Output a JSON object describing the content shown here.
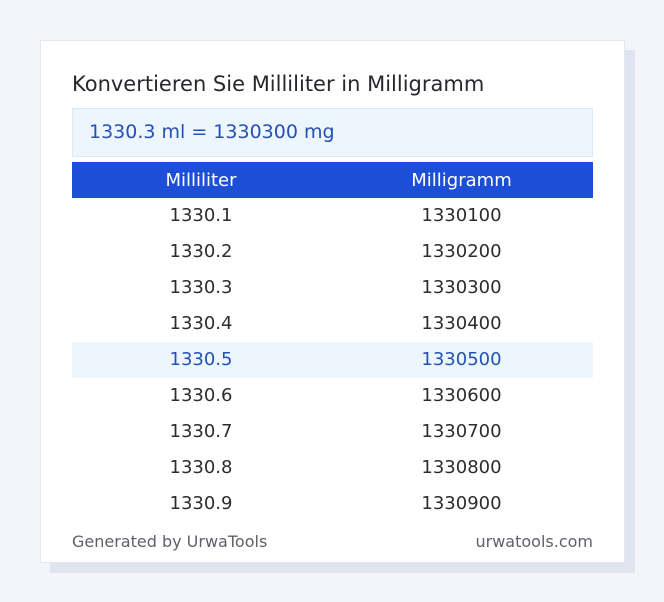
{
  "title": "Konvertieren Sie Milliliter in Milligramm",
  "result": "1330.3 ml = 1330300 mg",
  "table": {
    "headers": [
      "Milliliter",
      "Milligramm"
    ],
    "rows": [
      [
        "1330.1",
        "1330100"
      ],
      [
        "1330.2",
        "1330200"
      ],
      [
        "1330.3",
        "1330300"
      ],
      [
        "1330.4",
        "1330400"
      ],
      [
        "1330.5",
        "1330500"
      ],
      [
        "1330.6",
        "1330600"
      ],
      [
        "1330.7",
        "1330700"
      ],
      [
        "1330.8",
        "1330800"
      ],
      [
        "1330.9",
        "1330900"
      ]
    ]
  },
  "footer": {
    "generated_by": "Generated by UrwaTools",
    "site": "urwatools.com"
  },
  "colors": {
    "header_bg": "#1d4ed8",
    "highlight_bg": "#edf5fd",
    "highlight_text": "#2451b5"
  }
}
